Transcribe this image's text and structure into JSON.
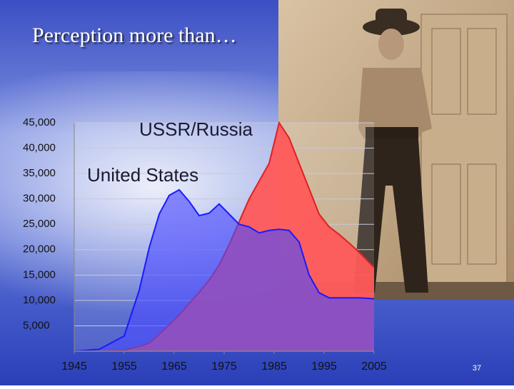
{
  "title": "Perception more than…",
  "slide_number": "37",
  "chart_data": {
    "type": "area",
    "x": [
      1945,
      1950,
      1955,
      1958,
      1960,
      1962,
      1964,
      1966,
      1968,
      1970,
      1972,
      1974,
      1976,
      1978,
      1980,
      1982,
      1984,
      1986,
      1988,
      1990,
      1992,
      1994,
      1996,
      1998,
      2000,
      2002,
      2004,
      2005
    ],
    "series": [
      {
        "name": "USSR/Russia",
        "color": "#ff5a5a",
        "line_color": "#e02020",
        "values": [
          0,
          5,
          200,
          900,
          1600,
          3300,
          5200,
          7100,
          9400,
          11600,
          14000,
          17000,
          21000,
          25500,
          30000,
          33500,
          37000,
          45000,
          42000,
          37000,
          32000,
          27000,
          24500,
          23000,
          21300,
          19500,
          17500,
          16500
        ]
      },
      {
        "name": "United States",
        "color": "#4a4aff",
        "line_color": "#1a1aff",
        "values": [
          6,
          370,
          3000,
          12000,
          20400,
          27000,
          30700,
          31800,
          29500,
          26700,
          27200,
          29000,
          27000,
          25000,
          24500,
          23300,
          23800,
          24000,
          23800,
          21500,
          15000,
          11500,
          10500,
          10500,
          10500,
          10500,
          10400,
          10300
        ]
      }
    ],
    "xlim": [
      1945,
      2005
    ],
    "ylim": [
      0,
      45000
    ],
    "xticks": [
      1945,
      1955,
      1965,
      1975,
      1985,
      1995,
      2005
    ],
    "yticks": [
      {
        "value": 5000,
        "label": "5,000"
      },
      {
        "value": 10000,
        "label": "10,000"
      },
      {
        "value": 15000,
        "label": "15,000"
      },
      {
        "value": 20000,
        "label": "20,000"
      },
      {
        "value": 25000,
        "label": "25,000"
      },
      {
        "value": 30000,
        "label": "30,000"
      },
      {
        "value": 35000,
        "label": "35,000"
      },
      {
        "value": 40000,
        "label": "40,000"
      },
      {
        "value": 45000,
        "label": "45,000"
      }
    ],
    "grid": true
  }
}
